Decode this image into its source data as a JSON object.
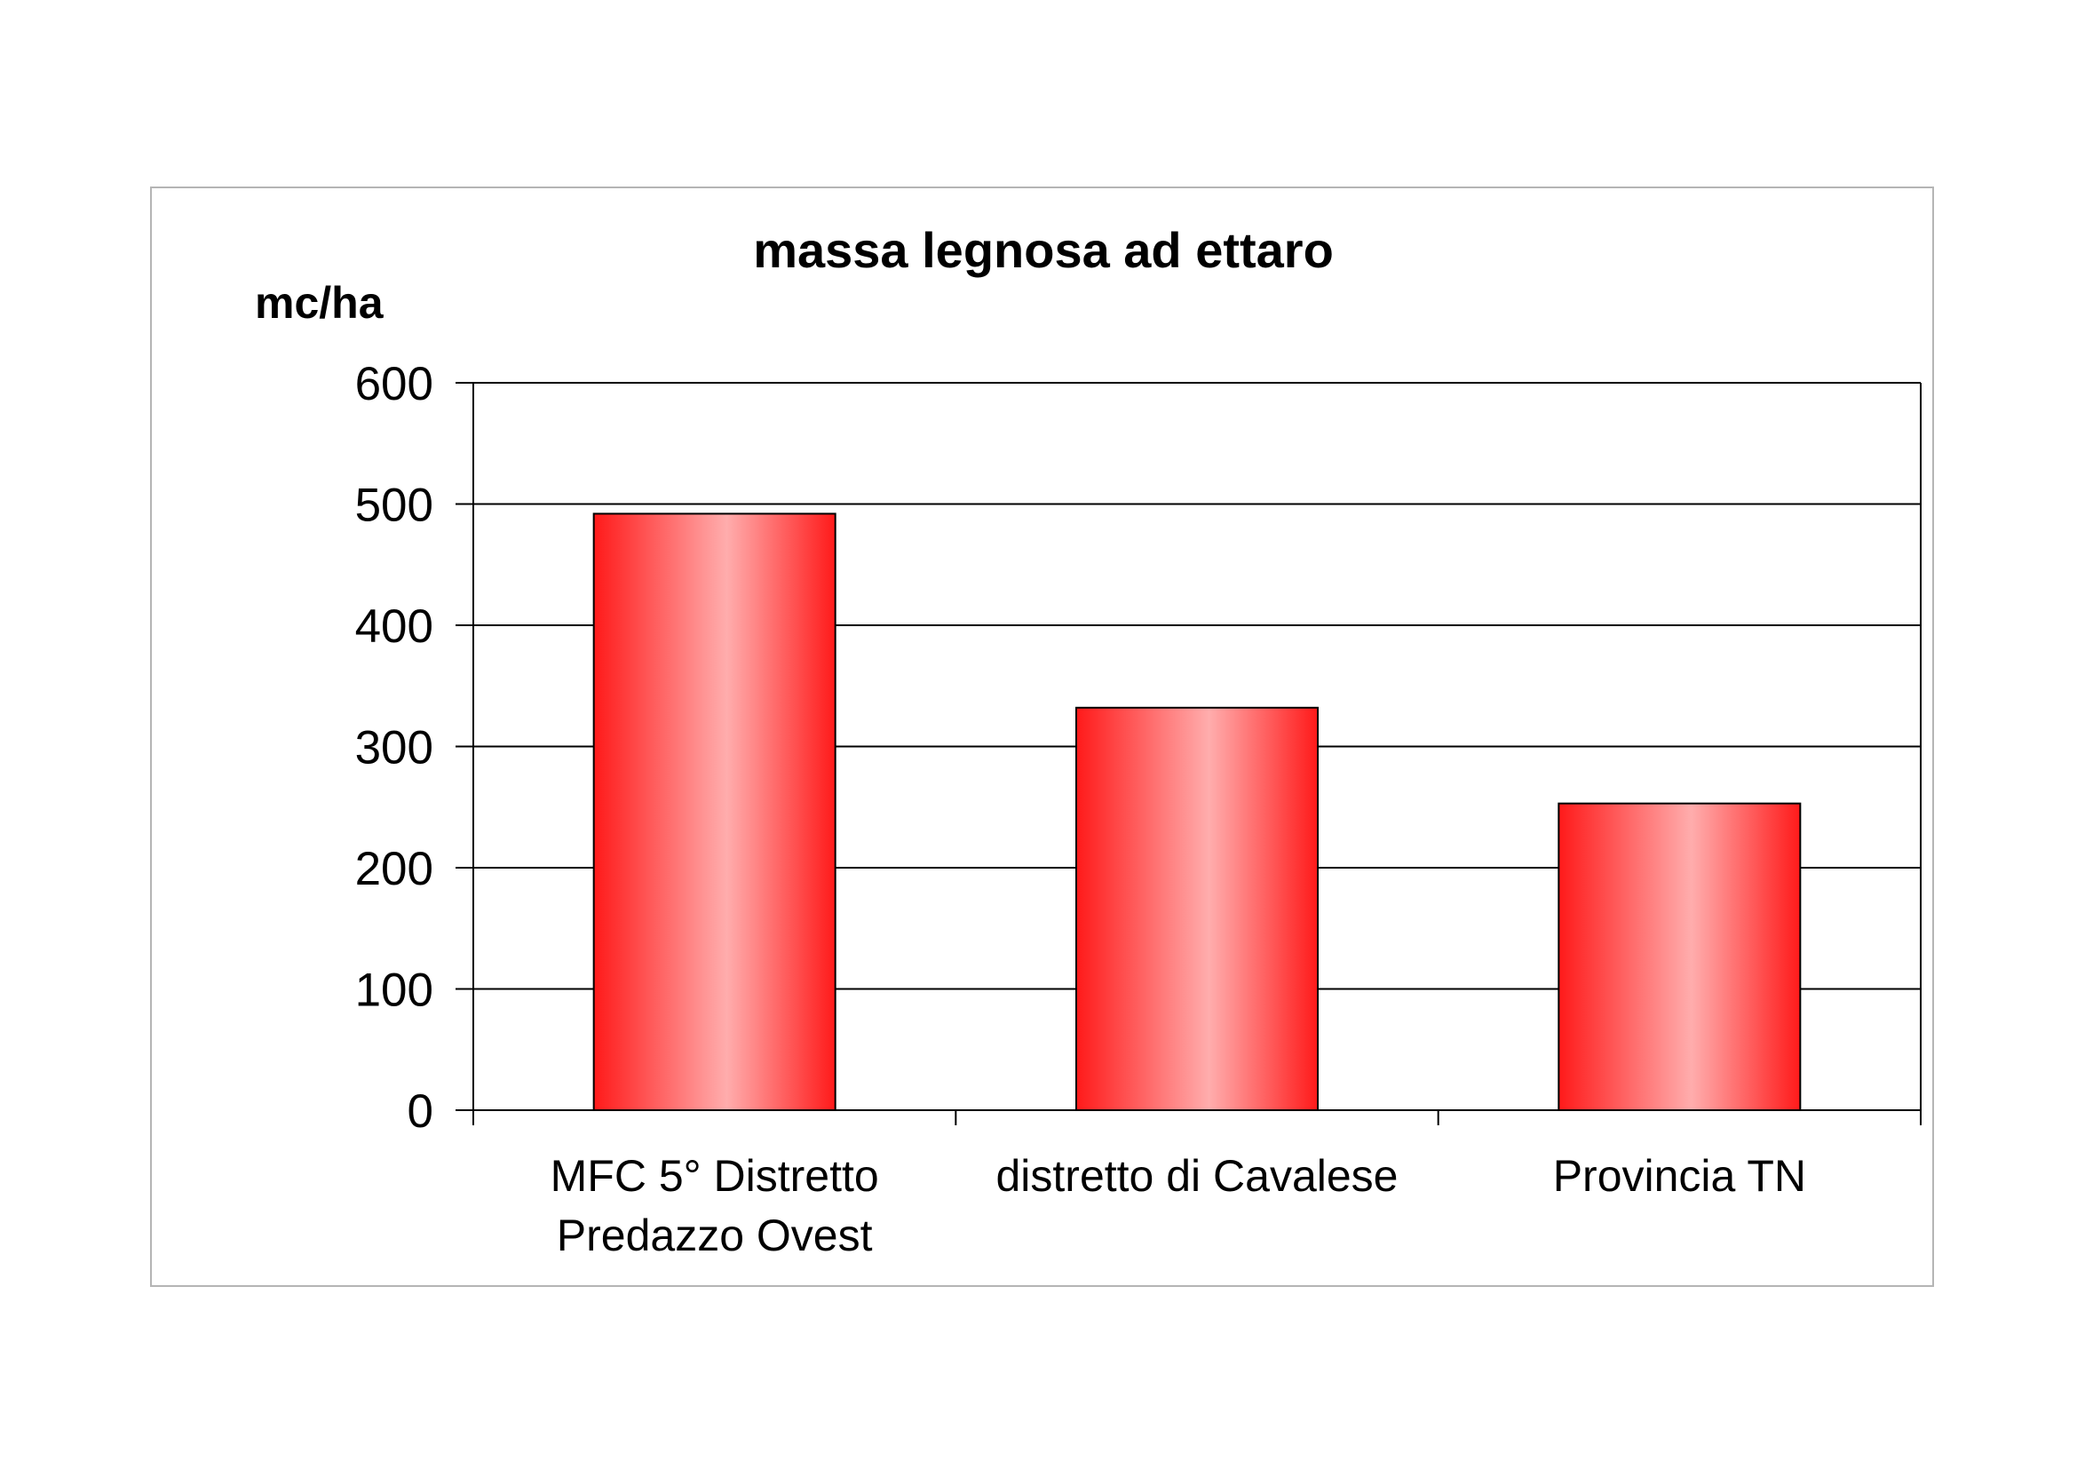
{
  "chart_data": {
    "type": "bar",
    "title": "massa legnosa ad ettaro",
    "ylabel": "mc/ha",
    "xlabel": "",
    "categories": [
      [
        "MFC 5° Distretto",
        "Predazzo Ovest"
      ],
      [
        "distretto di Cavalese"
      ],
      [
        "Provincia TN"
      ]
    ],
    "values": [
      492,
      332,
      253
    ],
    "ylim": [
      0,
      600
    ],
    "yticks": [
      "0",
      "100",
      "200",
      "300",
      "400",
      "500",
      "600"
    ],
    "grid": true,
    "legend": "none",
    "colors": {
      "bar_edge": "#ff1a1a",
      "bar_center": "#ffadad",
      "bar_outline": "#000000",
      "grid": "#000000",
      "frame": "#b5b5b5"
    }
  }
}
